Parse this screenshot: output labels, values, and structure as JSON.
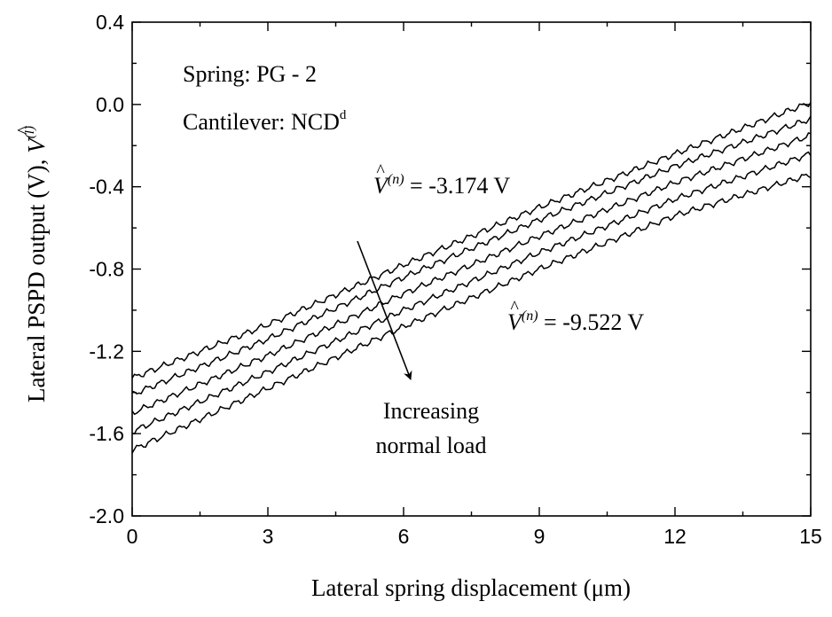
{
  "chart_data": {
    "type": "line",
    "xlabel": "Lateral spring displacement (μm)",
    "ylabel": {
      "prefix": "Lateral PSPD output (V), ",
      "symbol": "V",
      "superscript": "(l)"
    },
    "xlim": [
      0,
      15
    ],
    "ylim": [
      -2.0,
      0.4
    ],
    "xticks": [
      "0",
      "3",
      "6",
      "9",
      "12",
      "15"
    ],
    "yticks": [
      "-2.0",
      "-1.6",
      "-1.2",
      "-0.8",
      "-0.4",
      "0.0",
      "0.4"
    ],
    "grid": false,
    "series": [
      {
        "values": [
          [
            0,
            -1.33
          ],
          [
            3,
            -1.07
          ],
          [
            6,
            -0.78
          ],
          [
            9,
            -0.5
          ],
          [
            12,
            -0.24
          ],
          [
            15,
            0.01
          ]
        ]
      },
      {
        "values": [
          [
            0,
            -1.41
          ],
          [
            3,
            -1.14
          ],
          [
            6,
            -0.84
          ],
          [
            9,
            -0.56
          ],
          [
            12,
            -0.3
          ],
          [
            15,
            -0.07
          ]
        ]
      },
      {
        "values": [
          [
            0,
            -1.5
          ],
          [
            3,
            -1.22
          ],
          [
            6,
            -0.92
          ],
          [
            9,
            -0.64
          ],
          [
            12,
            -0.38
          ],
          [
            15,
            -0.15
          ]
        ]
      },
      {
        "values": [
          [
            0,
            -1.59
          ],
          [
            3,
            -1.3
          ],
          [
            6,
            -1.0
          ],
          [
            9,
            -0.72
          ],
          [
            12,
            -0.46
          ],
          [
            15,
            -0.24
          ]
        ]
      },
      {
        "values": [
          [
            0,
            -1.68
          ],
          [
            3,
            -1.38
          ],
          [
            6,
            -1.08
          ],
          [
            9,
            -0.8
          ],
          [
            12,
            -0.54
          ],
          [
            15,
            -0.34
          ]
        ]
      }
    ],
    "annotations": {
      "spring": "Spring: PG - 2",
      "cantilever": "Cantilever: NCD",
      "cantilever_sup": "d",
      "top_label": {
        "symbol": "V",
        "superscript": "(n)",
        "value": " = -3.174 V"
      },
      "bottom_label": {
        "symbol": "V",
        "superscript": "(n)",
        "value": " = -9.522 V"
      },
      "arrow_text_line1": "Increasing",
      "arrow_text_line2": "normal load"
    }
  }
}
